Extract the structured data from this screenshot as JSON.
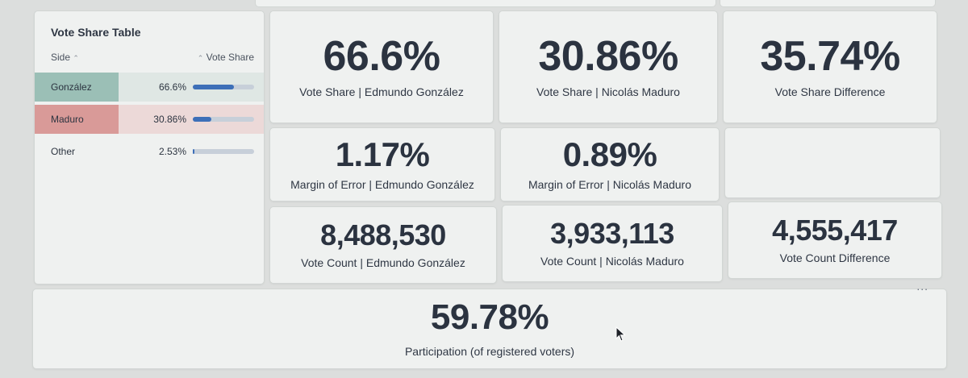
{
  "table": {
    "title": "Vote Share Table",
    "col_side": "Side",
    "col_share": "Vote Share",
    "rows": [
      {
        "side": "González",
        "value": "66.6%",
        "share": 66.6,
        "color": "#9bbfb6"
      },
      {
        "side": "Maduro",
        "value": "30.86%",
        "share": 30.86,
        "color": "#d99a98"
      },
      {
        "side": "Other",
        "value": "2.53%",
        "share": 2.53,
        "color": "#eff1f0"
      }
    ]
  },
  "metrics": {
    "gonzalez_share": {
      "value": "66.6%",
      "label": "Vote Share | Edmundo González"
    },
    "maduro_share": {
      "value": "30.86%",
      "label": "Vote Share | Nicolás Maduro"
    },
    "share_diff": {
      "value": "35.74%",
      "label": "Vote Share Difference"
    },
    "gonzalez_moe": {
      "value": "1.17%",
      "label": "Margin of Error | Edmundo González"
    },
    "maduro_moe": {
      "value": "0.89%",
      "label": "Margin of Error | Nicolás Maduro"
    },
    "gonzalez_count": {
      "value": "8,488,530",
      "label": "Vote Count | Edmundo González"
    },
    "maduro_count": {
      "value": "3,933,113",
      "label": "Vote Count | Nicolás Maduro"
    },
    "count_diff": {
      "value": "4,555,417",
      "label": "Vote Count Difference"
    },
    "participation": {
      "value": "59.78%",
      "label": "Participation (of registered voters)"
    }
  },
  "more_menu": "...",
  "colors": {
    "bar_fill": "#3d6fb8",
    "bar_track": "#c7cfd9"
  }
}
